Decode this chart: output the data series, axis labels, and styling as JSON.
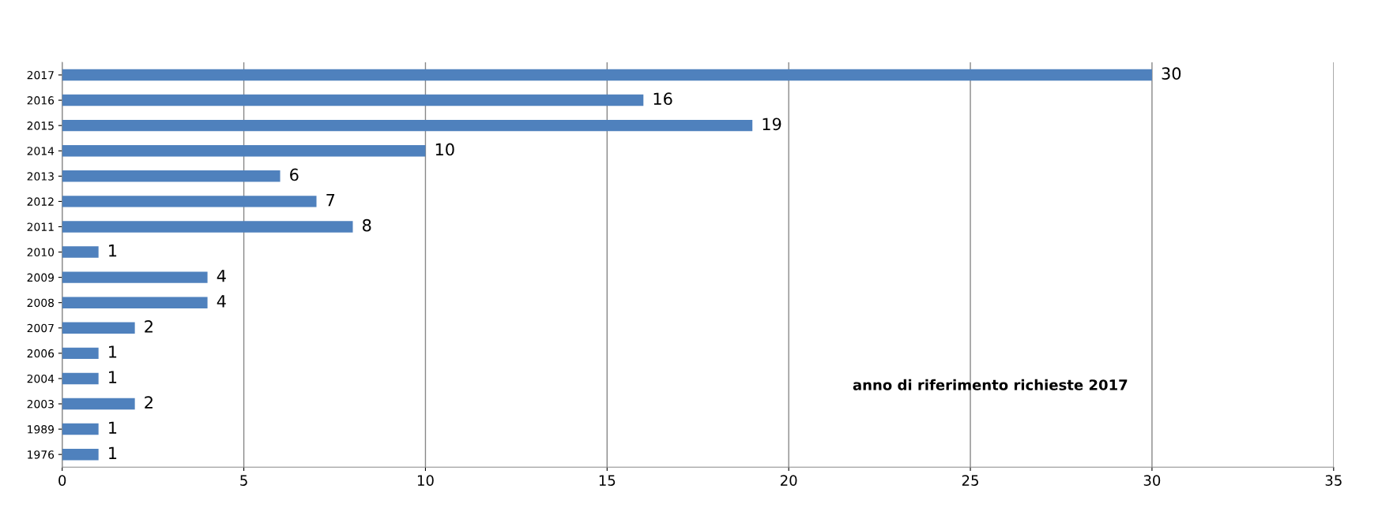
{
  "chart_data": {
    "type": "bar",
    "orientation": "horizontal",
    "categories": [
      "2017",
      "2016",
      "2015",
      "2014",
      "2013",
      "2012",
      "2011",
      "2010",
      "2009",
      "2008",
      "2007",
      "2006",
      "2004",
      "2003",
      "1989",
      "1976"
    ],
    "values": [
      30,
      16,
      19,
      10,
      6,
      7,
      8,
      1,
      4,
      4,
      2,
      1,
      1,
      2,
      1,
      1
    ],
    "color": "#4f81bd",
    "xlim": [
      0,
      35
    ],
    "xticks": [
      0,
      5,
      10,
      15,
      20,
      25,
      30,
      35
    ],
    "grid": "x",
    "data_labels": true,
    "annotations": [
      "anno di riferimento richieste 2017"
    ]
  }
}
